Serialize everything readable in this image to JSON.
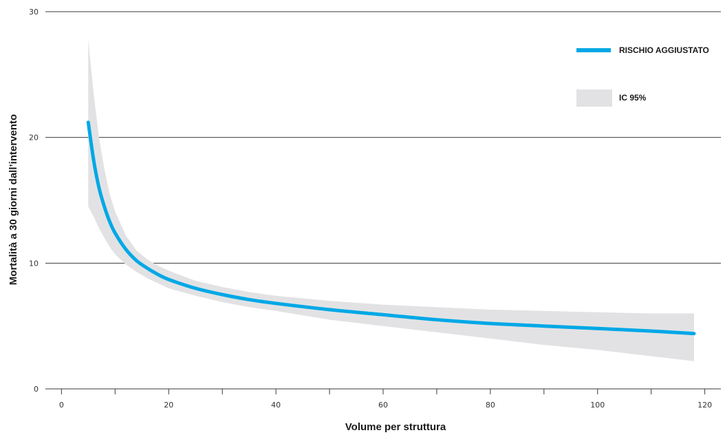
{
  "chart_data": {
    "type": "line",
    "title": "",
    "xlabel": "Volume per struttura",
    "ylabel": "Mortalità a 30 giorni dall’intervento",
    "xlim": [
      -3,
      123
    ],
    "ylim": [
      0,
      30
    ],
    "x_ticks": [
      0,
      20,
      40,
      60,
      80,
      100,
      120
    ],
    "x_minor_ticks": [
      10,
      30,
      50,
      70,
      90,
      110
    ],
    "y_ticks": [
      0,
      10,
      20,
      30
    ],
    "grid": "horizontal",
    "legend_position": "top-right",
    "series": [
      {
        "name": "RISCHIO AGGIUSTATO",
        "color": "#00a8e6",
        "x": [
          5,
          6,
          7,
          8,
          9,
          10,
          12,
          14,
          16,
          18,
          20,
          25,
          30,
          35,
          40,
          50,
          60,
          70,
          80,
          90,
          100,
          110,
          118
        ],
        "y": [
          21.2,
          18.2,
          16.0,
          14.5,
          13.3,
          12.4,
          11.1,
          10.2,
          9.6,
          9.1,
          8.7,
          8.0,
          7.5,
          7.1,
          6.8,
          6.3,
          5.9,
          5.5,
          5.2,
          5.0,
          4.8,
          4.6,
          4.4
        ]
      }
    ],
    "band": {
      "name": "IC 95%",
      "color": "#e2e2e4",
      "x": [
        5,
        6,
        7,
        8,
        9,
        10,
        12,
        14,
        16,
        18,
        20,
        25,
        30,
        35,
        40,
        50,
        60,
        70,
        80,
        90,
        100,
        110,
        118
      ],
      "upper": [
        27.8,
        23.5,
        20.0,
        17.5,
        15.5,
        14.1,
        12.2,
        11.0,
        10.3,
        9.8,
        9.4,
        8.6,
        8.1,
        7.7,
        7.4,
        7.0,
        6.7,
        6.5,
        6.3,
        6.2,
        6.1,
        6.0,
        6.0
      ],
      "lower": [
        14.5,
        13.7,
        12.8,
        12.0,
        11.3,
        10.7,
        9.9,
        9.3,
        8.8,
        8.4,
        8.0,
        7.4,
        6.9,
        6.5,
        6.2,
        5.5,
        5.0,
        4.5,
        4.0,
        3.5,
        3.1,
        2.6,
        2.2
      ]
    }
  }
}
